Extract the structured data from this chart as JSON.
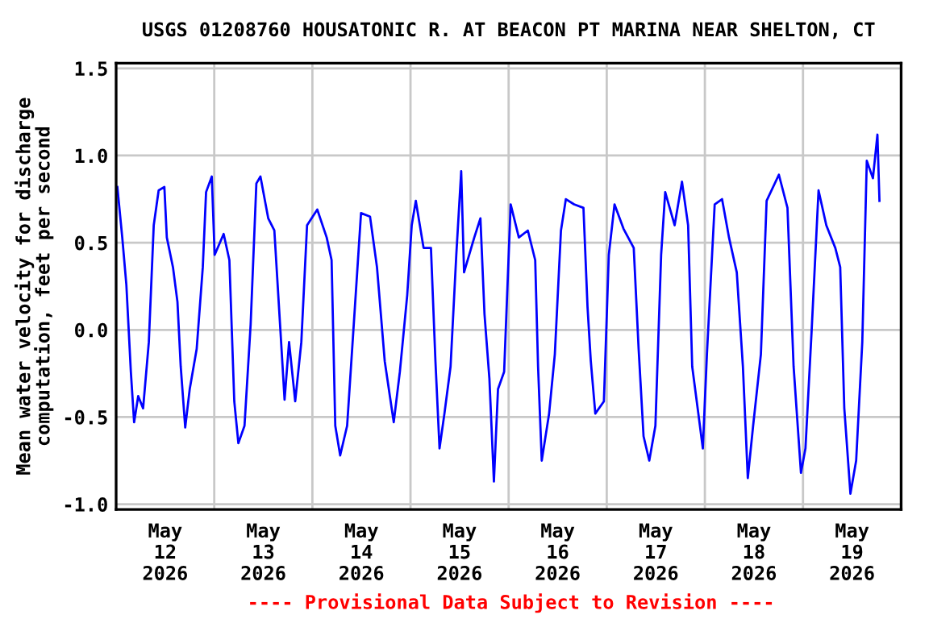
{
  "chart_data": {
    "type": "line",
    "title": "USGS 01208760 HOUSATONIC R. AT BEACON PT MARINA NEAR SHELTON, CT",
    "ylabel": "Mean water velocity for discharge\ncomputation, feet per second",
    "annotations": [
      "---- Provisional Data Subject to Revision ----"
    ],
    "xlim": [
      "2026-05-12T00:00",
      "2026-05-20T00:00"
    ],
    "ylim": [
      -1.03,
      1.53
    ],
    "yticks": [
      {
        "value": -1,
        "label": "-1.0"
      },
      -0.5,
      {
        "value": 0,
        "label": "0.0"
      },
      0.5,
      {
        "value": 1,
        "label": "1.0"
      },
      1.5
    ],
    "xticks": [
      {
        "value": "2026-05-12T12:00",
        "label": "May\n12\n2026"
      },
      {
        "value": "2026-05-13T00:00",
        "label": null
      },
      {
        "value": "2026-05-13T12:00",
        "label": "May\n13\n2026"
      },
      {
        "value": "2026-05-14T00:00",
        "label": null
      },
      {
        "value": "2026-05-14T12:00",
        "label": "May\n14\n2026"
      },
      {
        "value": "2026-05-15T00:00",
        "label": null
      },
      {
        "value": "2026-05-15T12:00",
        "label": "May\n15\n2026"
      },
      {
        "value": "2026-05-16T00:00",
        "label": null
      },
      {
        "value": "2026-05-16T12:00",
        "label": "May\n16\n2026"
      },
      {
        "value": "2026-05-17T00:00",
        "label": null
      },
      {
        "value": "2026-05-17T12:00",
        "label": "May\n17\n2026"
      },
      {
        "value": "2026-05-18T00:00",
        "label": null
      },
      {
        "value": "2026-05-18T12:00",
        "label": "May\n18\n2026"
      },
      {
        "value": "2026-05-19T00:00",
        "label": null
      },
      {
        "value": "2026-05-19T12:00",
        "label": "May\n19\n2026"
      }
    ],
    "grid": true,
    "legend": false,
    "series": [
      {
        "color": "#0000ff",
        "x": [
          "2026-05-12T00:18",
          "2026-05-12T01:30",
          "2026-05-12T02:30",
          "2026-05-12T03:36",
          "2026-05-12T04:24",
          "2026-05-12T05:24",
          "2026-05-12T06:36",
          "2026-05-12T08:00",
          "2026-05-12T09:12",
          "2026-05-12T10:24",
          "2026-05-12T11:48",
          "2026-05-12T12:24",
          "2026-05-12T13:54",
          "2026-05-12T15:00",
          "2026-05-12T15:48",
          "2026-05-12T16:54",
          "2026-05-12T18:00",
          "2026-05-12T19:42",
          "2026-05-12T21:12",
          "2026-05-12T22:00",
          "2026-05-12T23:24",
          "2026-05-13T00:06",
          "2026-05-13T02:18",
          "2026-05-13T03:42",
          "2026-05-13T04:54",
          "2026-05-13T05:54",
          "2026-05-13T07:24",
          "2026-05-13T08:54",
          "2026-05-13T10:18",
          "2026-05-13T11:18",
          "2026-05-13T13:12",
          "2026-05-13T14:42",
          "2026-05-13T16:12",
          "2026-05-13T17:12",
          "2026-05-13T18:18",
          "2026-05-13T19:48",
          "2026-05-13T21:18",
          "2026-05-13T22:42",
          "2026-05-14T01:12",
          "2026-05-14T03:30",
          "2026-05-14T04:42",
          "2026-05-14T05:36",
          "2026-05-14T06:48",
          "2026-05-14T08:30",
          "2026-05-14T10:24",
          "2026-05-14T11:54",
          "2026-05-14T14:06",
          "2026-05-14T15:48",
          "2026-05-14T17:42",
          "2026-05-14T19:54",
          "2026-05-14T21:24",
          "2026-05-14T23:12",
          "2026-05-15T00:18",
          "2026-05-15T01:18",
          "2026-05-15T03:12",
          "2026-05-15T05:00",
          "2026-05-15T06:06",
          "2026-05-15T07:06",
          "2026-05-15T08:18",
          "2026-05-15T09:48",
          "2026-05-15T11:12",
          "2026-05-15T12:24",
          "2026-05-15T13:06",
          "2026-05-15T15:36",
          "2026-05-15T17:06",
          "2026-05-15T18:06",
          "2026-05-15T19:18",
          "2026-05-15T20:24",
          "2026-05-15T21:24",
          "2026-05-15T22:54",
          "2026-05-16T00:30",
          "2026-05-16T02:30",
          "2026-05-16T04:42",
          "2026-05-16T06:30",
          "2026-05-16T07:12",
          "2026-05-16T08:06",
          "2026-05-16T09:54",
          "2026-05-16T11:18",
          "2026-05-16T12:48",
          "2026-05-16T14:00",
          "2026-05-16T16:00",
          "2026-05-16T18:18",
          "2026-05-16T19:18",
          "2026-05-16T20:06",
          "2026-05-16T21:12",
          "2026-05-16T23:18",
          "2026-05-17T00:30",
          "2026-05-17T01:54",
          "2026-05-17T04:06",
          "2026-05-17T06:36",
          "2026-05-17T07:48",
          "2026-05-17T09:00",
          "2026-05-17T10:24",
          "2026-05-17T11:54",
          "2026-05-17T13:18",
          "2026-05-17T14:18",
          "2026-05-17T16:36",
          "2026-05-17T18:24",
          "2026-05-17T19:54",
          "2026-05-17T20:54",
          "2026-05-17T22:24",
          "2026-05-17T23:30",
          "2026-05-18T00:30",
          "2026-05-18T02:24",
          "2026-05-18T04:12",
          "2026-05-18T05:54",
          "2026-05-18T07:48",
          "2026-05-18T09:18",
          "2026-05-18T10:30",
          "2026-05-18T11:48",
          "2026-05-18T13:42",
          "2026-05-18T15:06",
          "2026-05-18T18:06",
          "2026-05-18T20:12",
          "2026-05-18T21:42",
          "2026-05-18T23:30",
          "2026-05-19T00:36",
          "2026-05-19T02:06",
          "2026-05-19T03:48",
          "2026-05-19T05:42",
          "2026-05-19T07:54",
          "2026-05-19T09:06",
          "2026-05-19T10:06",
          "2026-05-19T11:36",
          "2026-05-19T13:00",
          "2026-05-19T14:30",
          "2026-05-19T15:36",
          "2026-05-19T17:06",
          "2026-05-19T18:12",
          "2026-05-19T18:42"
        ],
        "values": [
          0.82,
          0.53,
          0.26,
          -0.24,
          -0.53,
          -0.38,
          -0.45,
          -0.07,
          0.6,
          0.8,
          0.82,
          0.53,
          0.36,
          0.16,
          -0.21,
          -0.56,
          -0.34,
          -0.11,
          0.36,
          0.79,
          0.88,
          0.43,
          0.55,
          0.4,
          -0.41,
          -0.65,
          -0.55,
          0.03,
          0.84,
          0.88,
          0.64,
          0.57,
          -0.01,
          -0.4,
          -0.07,
          -0.41,
          -0.07,
          0.6,
          0.69,
          0.53,
          0.4,
          -0.55,
          -0.72,
          -0.55,
          0.13,
          0.67,
          0.65,
          0.36,
          -0.18,
          -0.53,
          -0.24,
          0.2,
          0.6,
          0.74,
          0.47,
          0.47,
          -0.18,
          -0.68,
          -0.48,
          -0.21,
          0.43,
          0.91,
          0.33,
          0.53,
          0.64,
          0.09,
          -0.28,
          -0.87,
          -0.34,
          -0.24,
          0.72,
          0.53,
          0.57,
          0.4,
          -0.21,
          -0.75,
          -0.48,
          -0.14,
          0.57,
          0.75,
          0.72,
          0.7,
          0.13,
          -0.18,
          -0.48,
          -0.41,
          0.43,
          0.72,
          0.58,
          0.47,
          -0.11,
          -0.61,
          -0.75,
          -0.55,
          0.43,
          0.79,
          0.6,
          0.85,
          0.6,
          -0.21,
          -0.48,
          -0.68,
          -0.14,
          0.72,
          0.75,
          0.53,
          0.33,
          -0.21,
          -0.85,
          -0.55,
          -0.14,
          0.74,
          0.89,
          0.7,
          -0.21,
          -0.82,
          -0.68,
          -0.01,
          0.8,
          0.6,
          0.47,
          0.36,
          -0.45,
          -0.94,
          -0.75,
          -0.07,
          0.97,
          0.87,
          1.12,
          0.74
        ]
      }
    ]
  }
}
